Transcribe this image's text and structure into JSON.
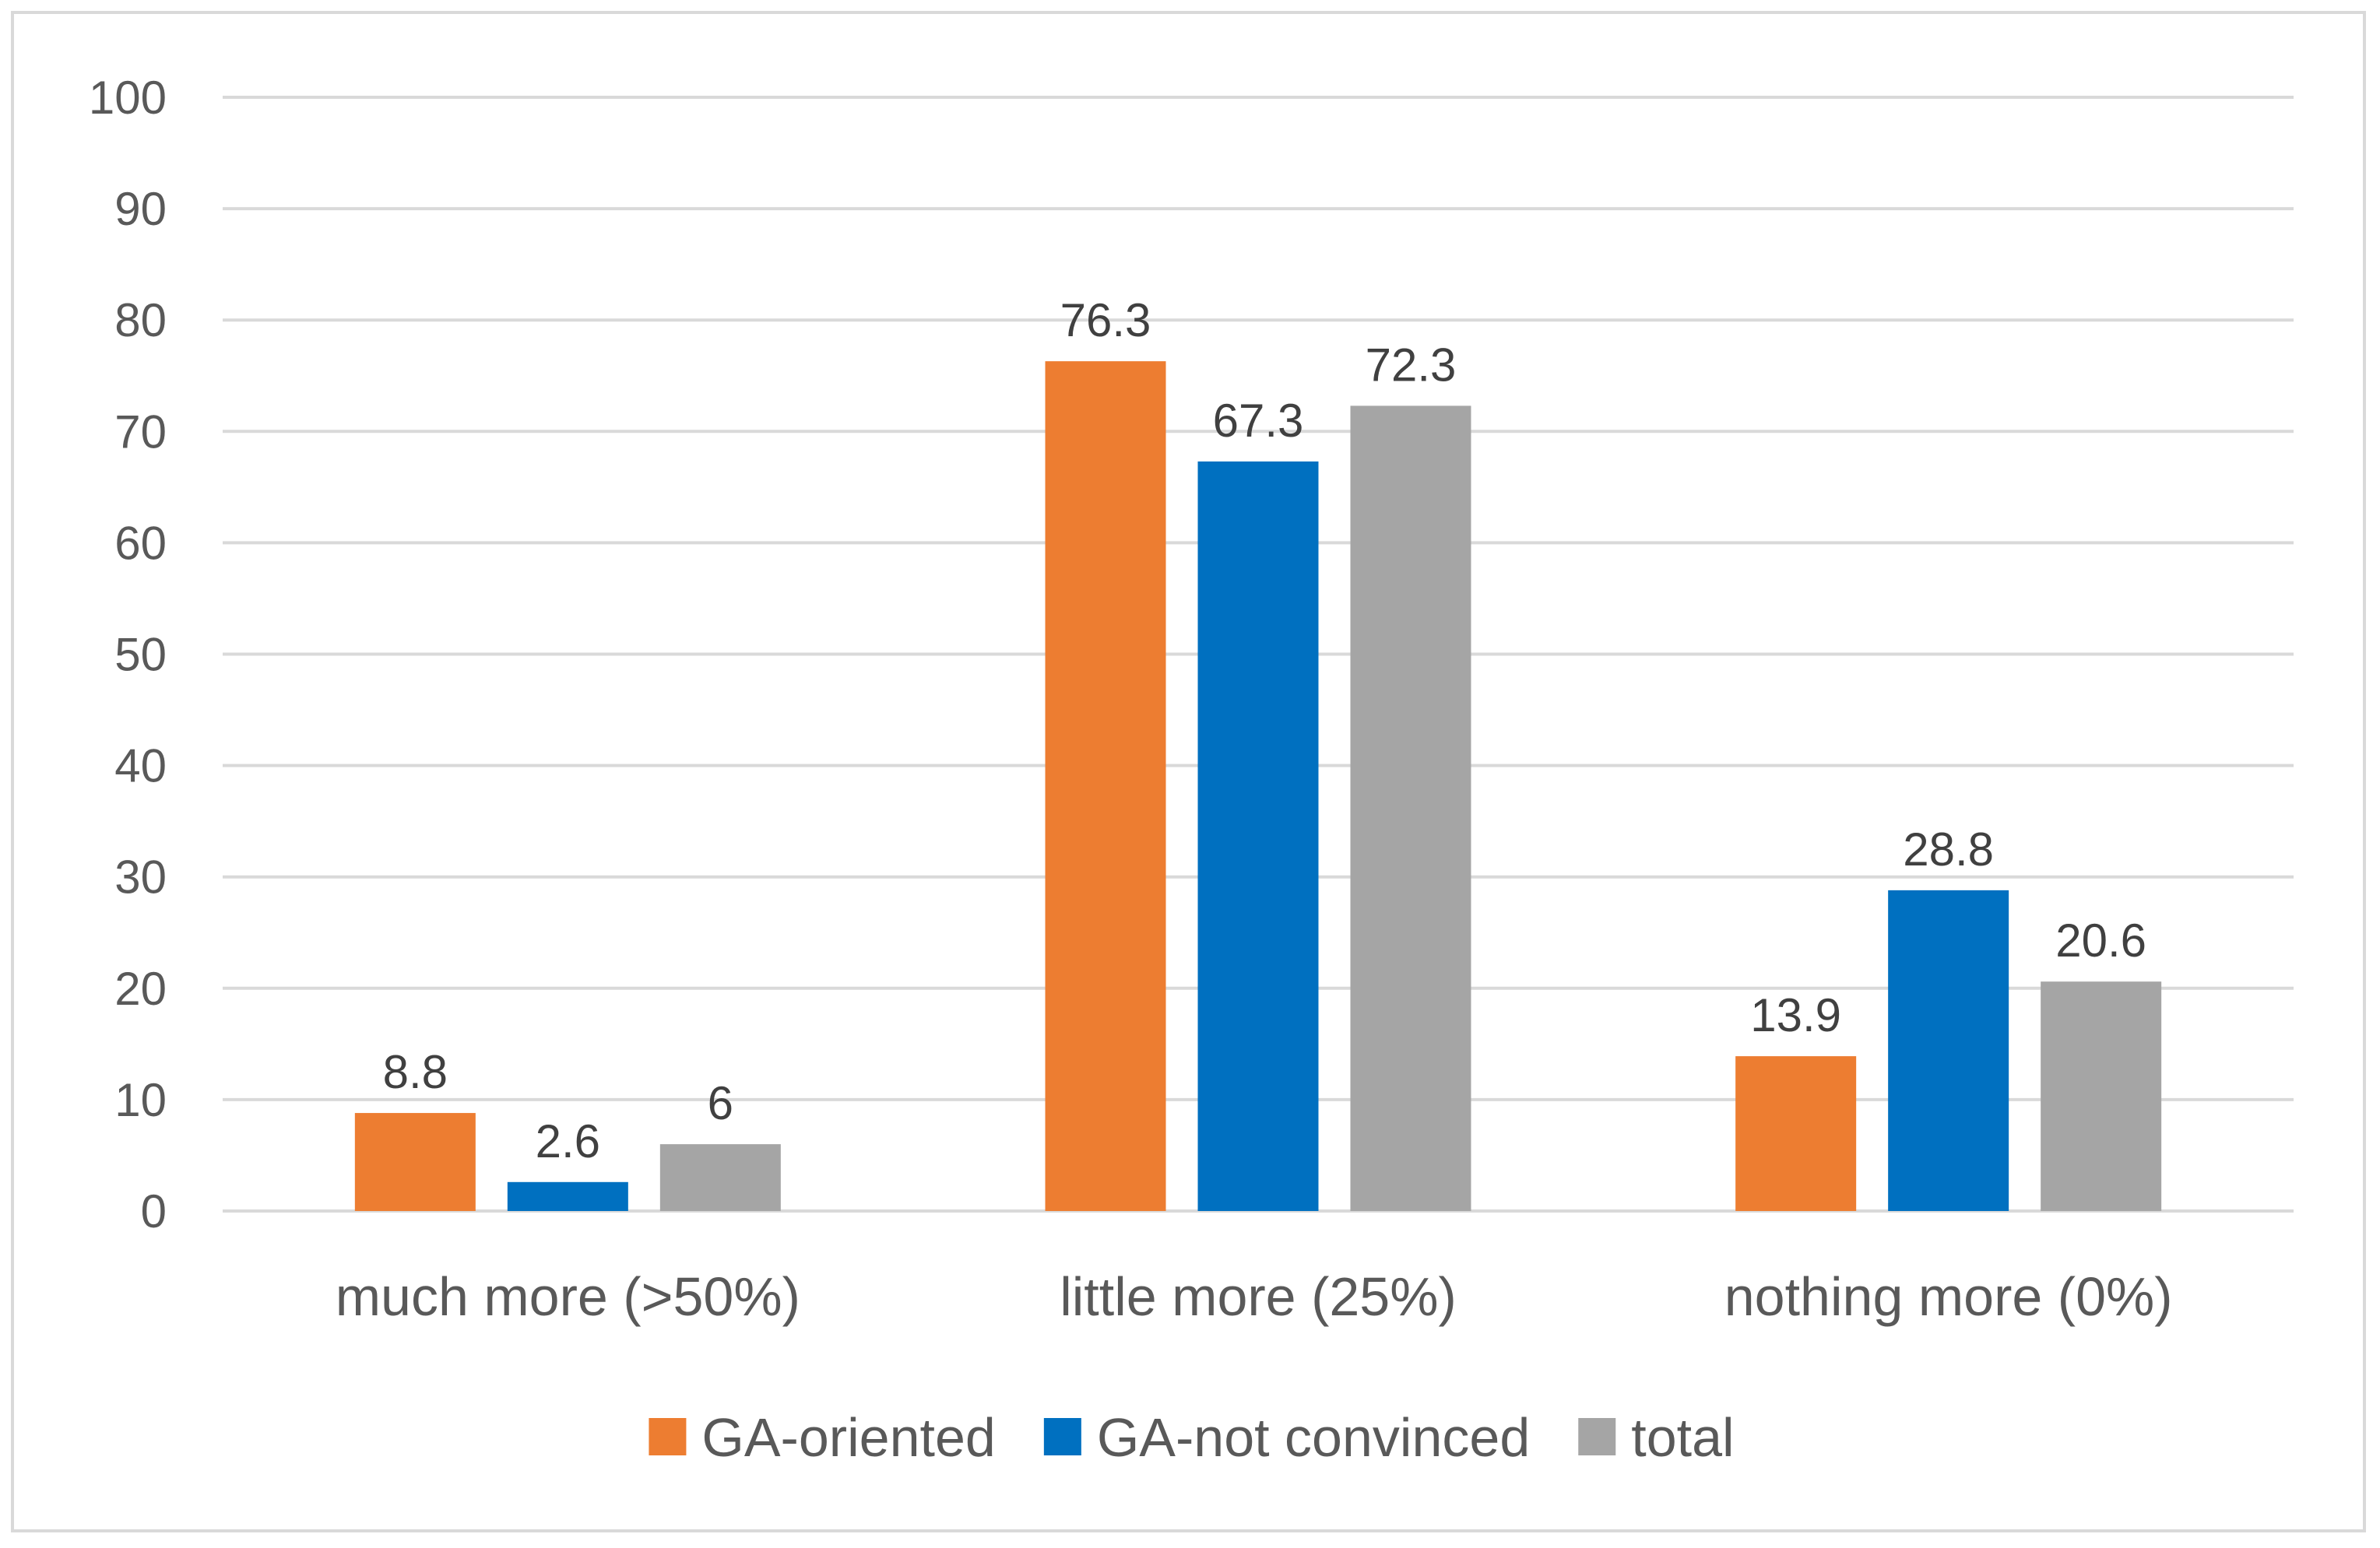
{
  "chart_data": {
    "type": "bar",
    "title": "",
    "xlabel": "",
    "ylabel": "",
    "ylim": [
      0,
      100
    ],
    "yticks": [
      0,
      10,
      20,
      30,
      40,
      50,
      60,
      70,
      80,
      90,
      100
    ],
    "grid": true,
    "legend_position": "bottom",
    "categories": [
      "much more (>50%)",
      "little more (25%)",
      "nothing more (0%)"
    ],
    "series": [
      {
        "name": "GA-oriented",
        "color": "#ED7D31",
        "values": [
          8.8,
          76.3,
          13.9
        ],
        "labels": [
          "8.8",
          "76.3",
          "13.9"
        ]
      },
      {
        "name": "GA-not convinced",
        "color": "#0070C0",
        "values": [
          2.6,
          67.3,
          28.8
        ],
        "labels": [
          "2.6",
          "67.3",
          "28.8"
        ]
      },
      {
        "name": "total",
        "color": "#A5A5A5",
        "values": [
          6,
          72.3,
          20.6
        ],
        "labels": [
          "6",
          "72.3",
          "20.6"
        ]
      }
    ]
  }
}
